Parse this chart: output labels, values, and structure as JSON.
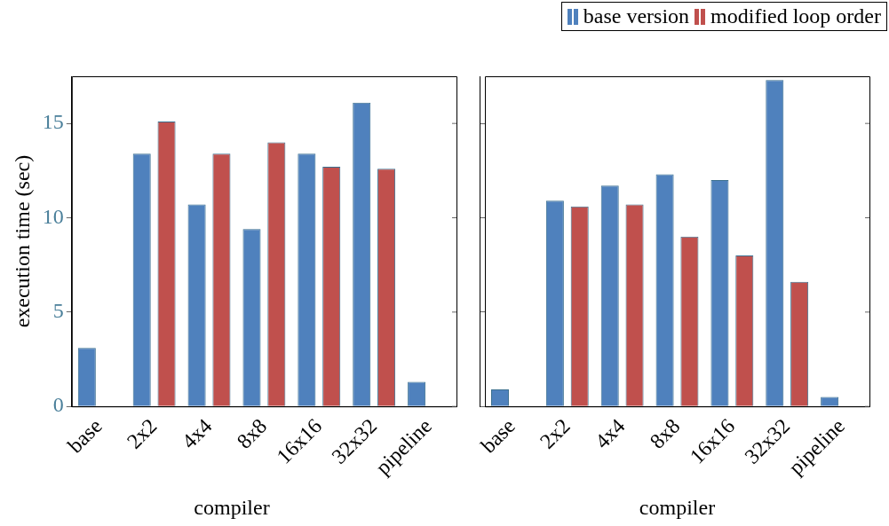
{
  "chart_data": [
    {
      "type": "bar",
      "xlabel": "compiler",
      "ylabel": "execution time (sec)",
      "categories": [
        "base",
        "2x2",
        "4x4",
        "8x8",
        "16x16",
        "32x32",
        "pipeline"
      ],
      "ylim": [
        0,
        17.5
      ],
      "yticks": [
        0,
        5,
        10,
        15
      ],
      "grid": false,
      "legend": "top right",
      "series": [
        {
          "name": "base version",
          "color": "#4f81bd",
          "values": [
            3.1,
            13.4,
            10.7,
            9.4,
            13.4,
            16.1,
            1.3
          ]
        },
        {
          "name": "modified loop order",
          "color": "#c0504d",
          "values": [
            0,
            15.1,
            13.4,
            14.0,
            12.7,
            12.6,
            0
          ]
        }
      ]
    },
    {
      "type": "bar",
      "xlabel": "compiler",
      "categories": [
        "base",
        "2x2",
        "4x4",
        "8x8",
        "16x16",
        "32x32",
        "pipeline"
      ],
      "ylim": [
        0,
        17.5
      ],
      "yticks": [
        0,
        5,
        10,
        15
      ],
      "grid": false,
      "tick_labels": "x",
      "series": [
        {
          "color": "#4f81bd",
          "values": [
            0.9,
            10.9,
            11.7,
            12.3,
            12.0,
            17.3,
            0.5
          ]
        },
        {
          "color": "#c0504d",
          "values": [
            0,
            10.6,
            10.7,
            9.0,
            8.0,
            6.6,
            0
          ]
        }
      ]
    }
  ]
}
